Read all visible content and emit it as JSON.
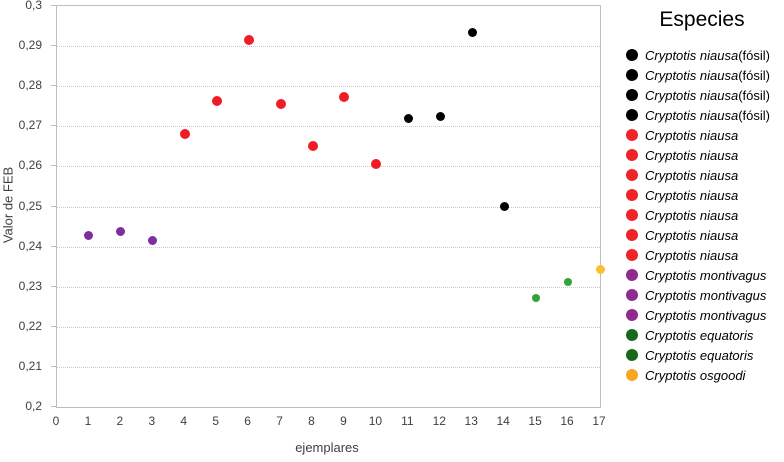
{
  "chart_data": {
    "type": "scatter",
    "title": "",
    "xlabel": "ejemplares",
    "ylabel": "Valor de FEB",
    "xlim": [
      0,
      17
    ],
    "ylim": [
      0.2,
      0.3
    ],
    "grid": "horizontal-dotted",
    "decimal_separator": ",",
    "x_ticks": [
      {
        "value": 0,
        "label": "0"
      },
      {
        "value": 1,
        "label": "1"
      },
      {
        "value": 2,
        "label": "2"
      },
      {
        "value": 3,
        "label": "3"
      },
      {
        "value": 4,
        "label": "4"
      },
      {
        "value": 5,
        "label": "5"
      },
      {
        "value": 6,
        "label": "6"
      },
      {
        "value": 7,
        "label": "7"
      },
      {
        "value": 8,
        "label": "8"
      },
      {
        "value": 9,
        "label": "9"
      },
      {
        "value": 10,
        "label": "10"
      },
      {
        "value": 11,
        "label": "11"
      },
      {
        "value": 12,
        "label": "12"
      },
      {
        "value": 13,
        "label": "13"
      },
      {
        "value": 14,
        "label": "14"
      },
      {
        "value": 15,
        "label": "15"
      },
      {
        "value": 16,
        "label": "16"
      },
      {
        "value": 17,
        "label": "17"
      }
    ],
    "y_ticks": [
      {
        "value": 0.3,
        "label": "0,3"
      },
      {
        "value": 0.29,
        "label": "0,29"
      },
      {
        "value": 0.28,
        "label": "0,28"
      },
      {
        "value": 0.27,
        "label": "0,27"
      },
      {
        "value": 0.26,
        "label": "0,26"
      },
      {
        "value": 0.25,
        "label": "0,25"
      },
      {
        "value": 0.24,
        "label": "0,24"
      },
      {
        "value": 0.23,
        "label": "0,23"
      },
      {
        "value": 0.22,
        "label": "0,22"
      },
      {
        "value": 0.21,
        "label": "0,21"
      },
      {
        "value": 0.2,
        "label": "0,2"
      }
    ],
    "points": [
      {
        "x": 1,
        "y": 0.2427,
        "series": "Cryptotis montivagus",
        "color": "#7c2f9e",
        "size": 9
      },
      {
        "x": 2,
        "y": 0.2437,
        "series": "Cryptotis montivagus",
        "color": "#7c2f9e",
        "size": 9
      },
      {
        "x": 3,
        "y": 0.2415,
        "series": "Cryptotis montivagus",
        "color": "#7c2f9e",
        "size": 9
      },
      {
        "x": 4,
        "y": 0.268,
        "series": "Cryptotis niausa",
        "color": "#ee1c25",
        "size": 10
      },
      {
        "x": 5,
        "y": 0.2762,
        "series": "Cryptotis niausa",
        "color": "#ee1c25",
        "size": 10
      },
      {
        "x": 6,
        "y": 0.2916,
        "series": "Cryptotis niausa",
        "color": "#ee1c25",
        "size": 10
      },
      {
        "x": 7,
        "y": 0.2756,
        "series": "Cryptotis niausa",
        "color": "#ee1c25",
        "size": 10
      },
      {
        "x": 8,
        "y": 0.265,
        "series": "Cryptotis niausa",
        "color": "#ee1c25",
        "size": 10
      },
      {
        "x": 9,
        "y": 0.2774,
        "series": "Cryptotis niausa",
        "color": "#ee1c25",
        "size": 10
      },
      {
        "x": 10,
        "y": 0.2606,
        "series": "Cryptotis niausa",
        "color": "#ee1c25",
        "size": 10
      },
      {
        "x": 11,
        "y": 0.272,
        "series": "Cryptotis niausa (fósil)",
        "color": "#000000",
        "size": 9
      },
      {
        "x": 12,
        "y": 0.2724,
        "series": "Cryptotis niausa (fósil)",
        "color": "#000000",
        "size": 9
      },
      {
        "x": 13,
        "y": 0.2934,
        "series": "Cryptotis niausa (fósil)",
        "color": "#000000",
        "size": 9
      },
      {
        "x": 14,
        "y": 0.25,
        "series": "Cryptotis niausa (fósil)",
        "color": "#000000",
        "size": 9
      },
      {
        "x": 15,
        "y": 0.2273,
        "series": "Cryptotis equatoris",
        "color": "#2fa535",
        "size": 8
      },
      {
        "x": 16,
        "y": 0.2311,
        "series": "Cryptotis equatoris",
        "color": "#2fa535",
        "size": 8
      },
      {
        "x": 17,
        "y": 0.2343,
        "series": "Cryptotis osgoodi",
        "color": "#fcbf2d",
        "size": 9
      }
    ],
    "legend": {
      "title": "Especies",
      "position": "right",
      "entries": [
        {
          "species": "Cryptotis niausa",
          "suffix": " (fósil)",
          "color": "#000000"
        },
        {
          "species": "Cryptotis niausa",
          "suffix": " (fósil)",
          "color": "#000000"
        },
        {
          "species": "Cryptotis niausa",
          "suffix": " (fósil)",
          "color": "#000000"
        },
        {
          "species": "Cryptotis niausa",
          "suffix": " (fósil)",
          "color": "#000000"
        },
        {
          "species": "Cryptotis niausa",
          "suffix": "",
          "color": "#ee2428"
        },
        {
          "species": "Cryptotis niausa",
          "suffix": "",
          "color": "#ee2428"
        },
        {
          "species": "Cryptotis niausa",
          "suffix": "",
          "color": "#ee2428"
        },
        {
          "species": "Cryptotis niausa",
          "suffix": "",
          "color": "#ee2428"
        },
        {
          "species": "Cryptotis niausa",
          "suffix": "",
          "color": "#ee2428"
        },
        {
          "species": "Cryptotis niausa",
          "suffix": "",
          "color": "#ee2428"
        },
        {
          "species": "Cryptotis niausa",
          "suffix": "",
          "color": "#ee2428"
        },
        {
          "species": "Cryptotis montivagus",
          "suffix": "",
          "color": "#8e2b8e"
        },
        {
          "species": "Cryptotis montivagus",
          "suffix": "",
          "color": "#8e2b8e"
        },
        {
          "species": "Cryptotis montivagus",
          "suffix": "",
          "color": "#8e2b8e"
        },
        {
          "species": "Cryptotis equatoris",
          "suffix": "",
          "color": "#17681d"
        },
        {
          "species": "Cryptotis equatoris",
          "suffix": "",
          "color": "#17681d"
        },
        {
          "species": "Cryptotis osgoodi",
          "suffix": "",
          "color": "#f7a622"
        }
      ]
    }
  }
}
